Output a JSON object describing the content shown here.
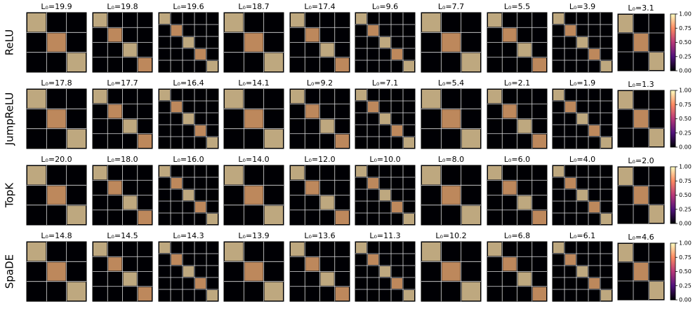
{
  "chart_data": {
    "type": "heatmap",
    "rows": [
      {
        "label": "ReLU",
        "panels": [
          "L₀=19.9",
          "L₀=19.8",
          "L₀=19.6",
          "L₀=18.7",
          "L₀=17.4",
          "L₀=9.6",
          "L₀=7.7",
          "L₀=5.5",
          "L₀=3.9",
          "L₀=3.1"
        ]
      },
      {
        "label": "JumpReLU",
        "panels": [
          "L₀=17.8",
          "L₀=17.7",
          "L₀=16.4",
          "L₀=14.1",
          "L₀=9.2",
          "L₀=7.1",
          "L₀=5.4",
          "L₀=2.1",
          "L₀=1.9",
          "L₀=1.3"
        ]
      },
      {
        "label": "TopK",
        "panels": [
          "L₀=20.0",
          "L₀=18.0",
          "L₀=16.0",
          "L₀=14.0",
          "L₀=12.0",
          "L₀=10.0",
          "L₀=8.0",
          "L₀=6.0",
          "L₀=4.0",
          "L₀=2.0"
        ]
      },
      {
        "label": "SpaDE",
        "panels": [
          "L₀=14.8",
          "L₀=14.5",
          "L₀=14.3",
          "L₀=13.9",
          "L₀=13.6",
          "L₀=11.3",
          "L₀=10.2",
          "L₀=6.8",
          "L₀=6.1",
          "L₀=4.6"
        ]
      }
    ],
    "colorbar": {
      "clim": [
        0,
        1
      ],
      "ticks": [
        {
          "value": 0,
          "label": "0.00"
        },
        {
          "value": 0.25,
          "label": "0.25"
        },
        {
          "value": 0.5,
          "label": "0.50"
        },
        {
          "value": 0.75,
          "label": "0.75"
        },
        {
          "value": 1,
          "label": "1.00"
        }
      ]
    }
  }
}
